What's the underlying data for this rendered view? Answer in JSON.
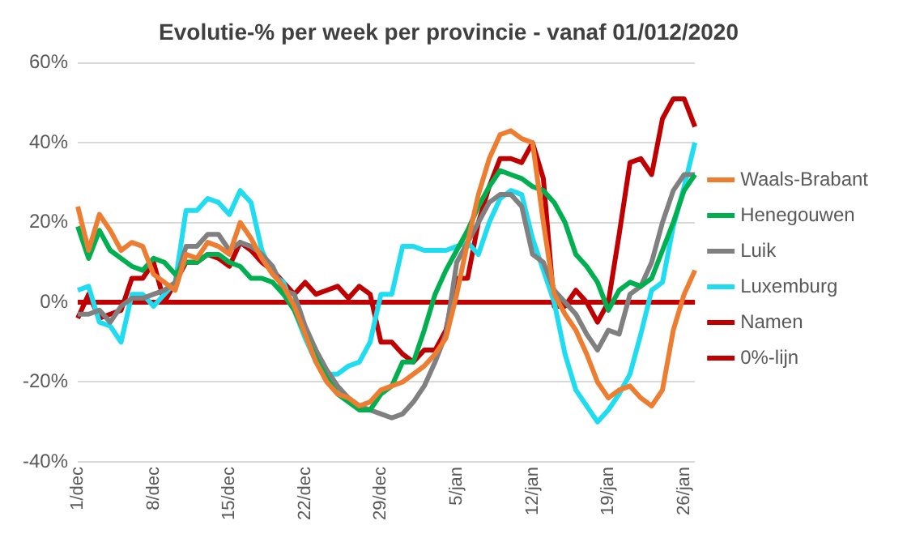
{
  "chart_data": {
    "type": "line",
    "title": "Evolutie-% per week per provincie - vanaf 01/012/2020",
    "categories": [
      "1/dec",
      null,
      null,
      null,
      null,
      null,
      null,
      "8/dec",
      null,
      null,
      null,
      null,
      null,
      null,
      "15/dec",
      null,
      null,
      null,
      null,
      null,
      null,
      "22/dec",
      null,
      null,
      null,
      null,
      null,
      null,
      "29/dec",
      null,
      null,
      null,
      null,
      null,
      null,
      "5/jan",
      null,
      null,
      null,
      null,
      null,
      null,
      "12/jan",
      null,
      null,
      null,
      null,
      null,
      null,
      "19/jan",
      null,
      null,
      null,
      null,
      null,
      null,
      "26/jan",
      null
    ],
    "series": [
      {
        "name": "Waals-Brabant",
        "color": "#ed7d31",
        "values": [
          24,
          13,
          22,
          18,
          13,
          15,
          14,
          7,
          5,
          3,
          12,
          11,
          15,
          14,
          12,
          20,
          16,
          11,
          7,
          4,
          -1,
          -8,
          -15,
          -20,
          -23,
          -24,
          -26,
          -25,
          -22,
          -21,
          -20,
          -18,
          -16,
          -13,
          -9,
          2,
          15,
          27,
          36,
          42,
          43,
          41,
          40,
          20,
          2,
          -3,
          -7,
          -13,
          -20,
          -24,
          -22,
          -21,
          -24,
          -26,
          -22,
          -7,
          2,
          8
        ]
      },
      {
        "name": "Henegouwen",
        "color": "#00b050",
        "values": [
          19,
          11,
          18,
          13,
          11,
          9,
          8,
          11,
          10,
          7,
          10,
          10,
          12,
          12,
          10,
          9,
          6,
          6,
          5,
          2,
          -2,
          -8,
          -14,
          -19,
          -23,
          -25,
          -27,
          -27,
          -23,
          -21,
          -15,
          -15,
          -7,
          2,
          8,
          13,
          18,
          24,
          29,
          33,
          32,
          31,
          29,
          28,
          25,
          20,
          12,
          9,
          5,
          -2,
          3,
          5,
          4,
          6,
          13,
          20,
          28,
          32
        ]
      },
      {
        "name": "Luik",
        "color": "#808080",
        "values": [
          -3,
          -3,
          -2,
          -5,
          -1,
          1,
          1,
          2,
          3,
          5,
          14,
          14,
          17,
          17,
          13,
          15,
          14,
          12,
          9,
          3,
          2,
          -6,
          -12,
          -17,
          -21,
          -24,
          -26,
          -27,
          -28,
          -29,
          -28,
          -25,
          -21,
          -15,
          -8,
          10,
          15,
          20,
          25,
          27,
          27,
          24,
          12,
          10,
          3,
          0,
          -3,
          -8,
          -12,
          -7,
          -8,
          2,
          4,
          10,
          20,
          28,
          32,
          32
        ]
      },
      {
        "name": "Luxemburg",
        "color": "#1fdcf0",
        "values": [
          3,
          4,
          -5,
          -6,
          -10,
          2,
          2,
          -1,
          2,
          5,
          23,
          23,
          26,
          25,
          22,
          28,
          25,
          13,
          7,
          5,
          -2,
          -9,
          -15,
          -18,
          -18,
          -16,
          -15,
          -10,
          2,
          2,
          14,
          14,
          13,
          13,
          13,
          14,
          15,
          12,
          20,
          26,
          28,
          27,
          16,
          8,
          0,
          -13,
          -22,
          -26,
          -30,
          -27,
          -23,
          -18,
          -8,
          3,
          5,
          19,
          29,
          40
        ]
      },
      {
        "name": "Namen",
        "color": "#c00000",
        "values": [
          -4,
          2,
          -4,
          -3,
          -2,
          6,
          6,
          10,
          0,
          5,
          10,
          10,
          12,
          11,
          9,
          15,
          13,
          10,
          8,
          5,
          2,
          5,
          2,
          3,
          4,
          1,
          4,
          2,
          -10,
          -10,
          -13,
          -15,
          -12,
          -12,
          -7,
          6,
          6,
          20,
          29,
          36,
          36,
          35,
          40,
          31,
          -1,
          -1,
          3,
          0,
          -5,
          0,
          17,
          35,
          36,
          32,
          46,
          51,
          51,
          44
        ]
      },
      {
        "name": "0%-lijn",
        "color": "#c00000",
        "values": [
          0,
          0,
          0,
          0,
          0,
          0,
          0,
          0,
          0,
          0,
          0,
          0,
          0,
          0,
          0,
          0,
          0,
          0,
          0,
          0,
          0,
          0,
          0,
          0,
          0,
          0,
          0,
          0,
          0,
          0,
          0,
          0,
          0,
          0,
          0,
          0,
          0,
          0,
          0,
          0,
          0,
          0,
          0,
          0,
          0,
          0,
          0,
          0,
          0,
          0,
          0,
          0,
          0,
          0,
          0,
          0,
          0,
          0
        ]
      }
    ],
    "ylim": [
      -40,
      60
    ],
    "yticks": [
      {
        "value": -40,
        "label": "-40%"
      },
      {
        "value": -20,
        "label": "-20%"
      },
      {
        "value": 0,
        "label": "0%"
      },
      {
        "value": 20,
        "label": "20%"
      },
      {
        "value": 40,
        "label": "40%"
      },
      {
        "value": 60,
        "label": "60%"
      }
    ],
    "grid": "y",
    "legend": "right",
    "marker": "none",
    "line_style": "solid"
  }
}
